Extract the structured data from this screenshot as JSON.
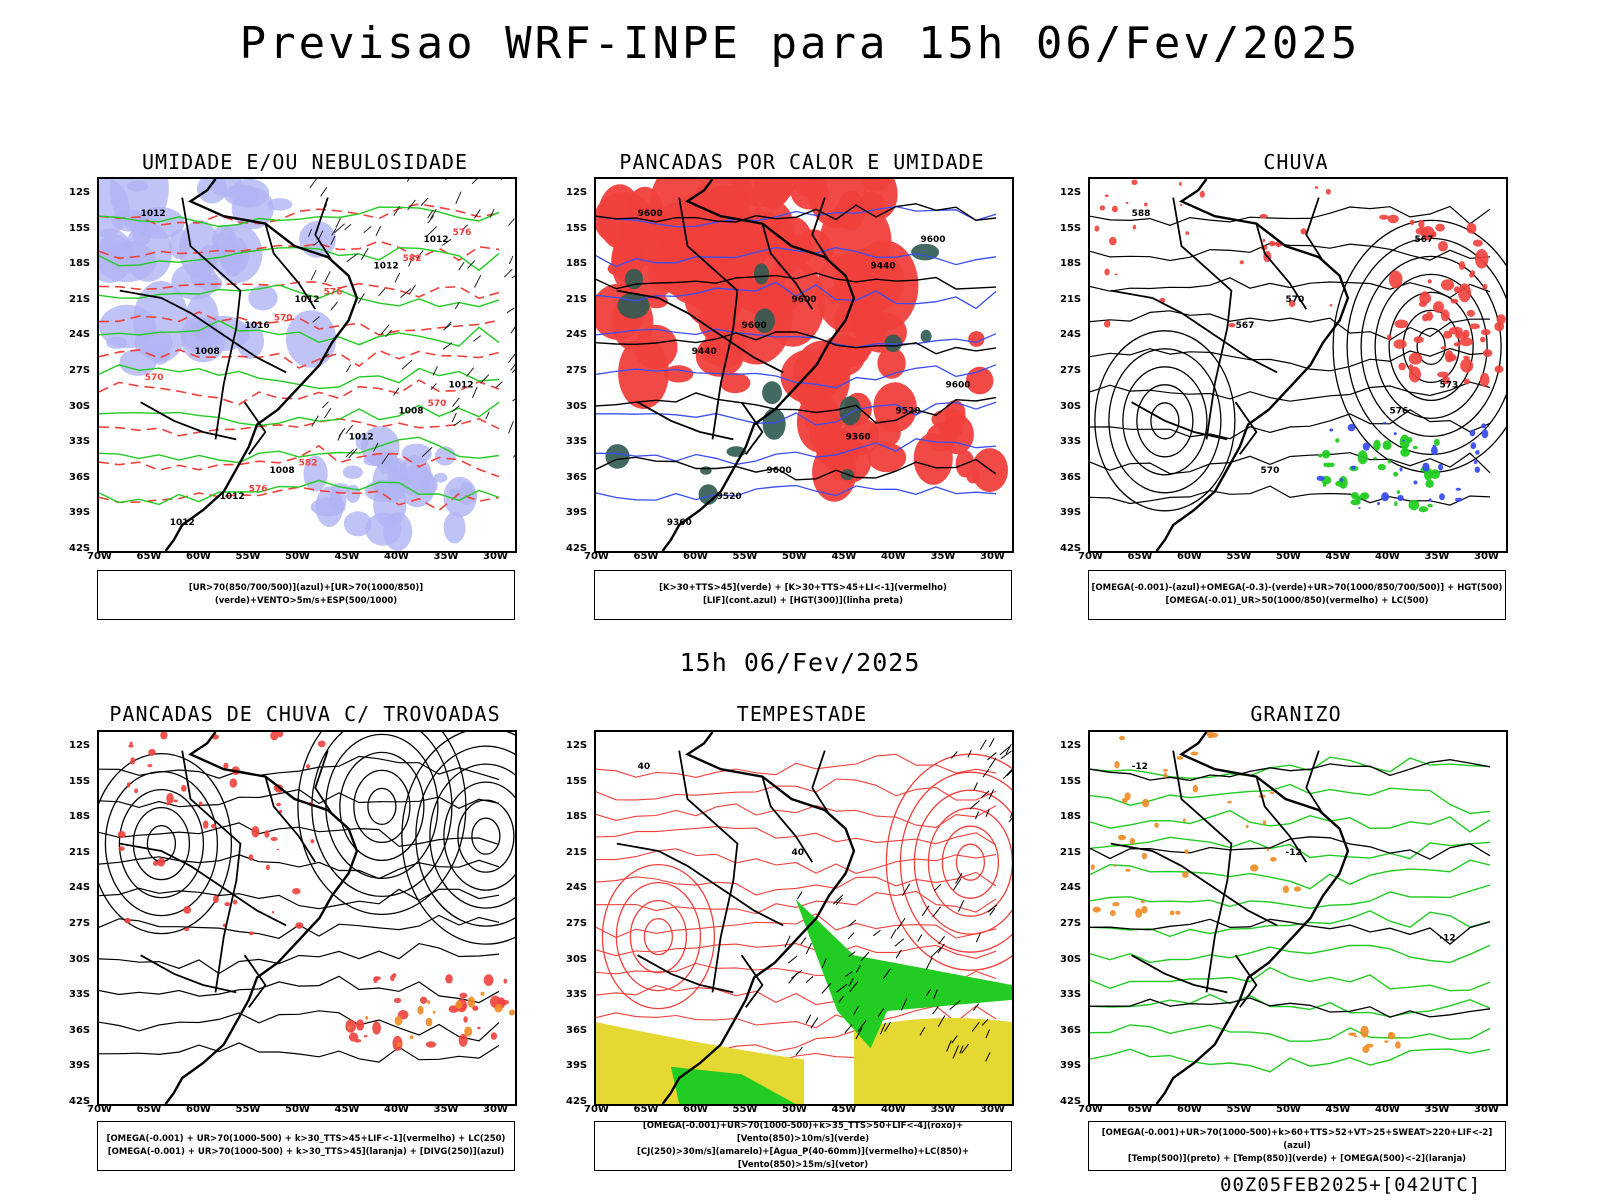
{
  "title": "Previsao WRF-INPE  para 15h 06/Fev/2025",
  "mid_title": "15h 06/Fev/2025",
  "footer": "00Z05FEB2025+[042UTC]",
  "lat_ticks": [
    "12S",
    "15S",
    "18S",
    "21S",
    "24S",
    "27S",
    "30S",
    "33S",
    "36S",
    "39S",
    "42S"
  ],
  "lon_ticks": [
    "70W",
    "65W",
    "60W",
    "55W",
    "50W",
    "45W",
    "40W",
    "35W",
    "30W"
  ],
  "panels": [
    {
      "title": "UMIDADE E/OU NEBULOSIDADE",
      "legend": [
        "[UR>70(850/700/500)](azul)+[UR>70(1000/850)](verde)+VENTO>5m/s+ESP(500/1000)"
      ],
      "contour_labels": [
        "1012",
        "1012",
        "1012",
        "1008",
        "1012",
        "1016",
        "1008",
        "1012",
        "1012",
        "1008",
        "1012",
        "1012",
        "576",
        "570",
        "582",
        "576",
        "570",
        "570",
        "576",
        "582"
      ]
    },
    {
      "title": "PANCADAS POR CALOR E UMIDADE",
      "legend": [
        "[K>30+TTS>45](verde) + [K>30+TTS>45+LI<-1](vermelho)",
        "[LIF](cont.azul) + [HGT(300)](linha preta)"
      ],
      "contour_labels": [
        "9600",
        "9600",
        "9600",
        "9600",
        "9600",
        "9600",
        "9520",
        "9520",
        "9440",
        "9440",
        "9360",
        "9360"
      ]
    },
    {
      "title": "CHUVA",
      "legend": [
        "[OMEGA(-0.001)-(azul)+OMEGA(-0.3)-(verde)+UR>70(1000/850/700/500)] + HGT(500)",
        "[OMEGA(-0.01)_UR>50(1000/850)(vermelho) + LC(500)"
      ],
      "contour_labels": [
        "588",
        "570",
        "573",
        "570",
        "567",
        "567",
        "576"
      ]
    },
    {
      "title": "PANCADAS DE CHUVA C/ TROVOADAS",
      "legend": [
        "[OMEGA(-0.001) + UR>70(1000-500) + k>30_TTS>45+LIF<-1](vermelho) + LC(250)",
        "[OMEGA(-0.001) + UR>70(1000-500) + k>30_TTS>45](laranja) + [DIVG(250)](azul)"
      ],
      "contour_labels": []
    },
    {
      "title": "TEMPESTADE",
      "legend": [
        "[OMEGA(-0.001)+UR>70(1000-500)+k>35_TTS>50+LIF<-4](roxo)+[Vento(850)>10m/s](verde)",
        "[CJ(250)>30m/s](amarelo)+[Agua_P(40-60mm)](vermelho)+LC(850)+[Vento(850)>15m/s](vetor)"
      ],
      "contour_labels": [
        "40",
        "40"
      ]
    },
    {
      "title": "GRANIZO",
      "legend": [
        "[OMEGA(-0.001)+UR>70(1000-500)+k>60+TTS>52+VT>25+SWEAT>220+LIF<-2](azul)",
        "[Temp(500)](preto) + [Temp(850)](verde) + [OMEGA(500)<-2](laranja)"
      ],
      "contour_labels": [
        "-12",
        "-12",
        "-12"
      ]
    }
  ],
  "colors": {
    "red": "#f0403c",
    "green": "#22cc22",
    "blue": "#3a4ef0",
    "lavender": "#b0b4f4",
    "orange": "#ee8a22",
    "yellow": "#e6d832",
    "teal": "#2e5a52"
  }
}
